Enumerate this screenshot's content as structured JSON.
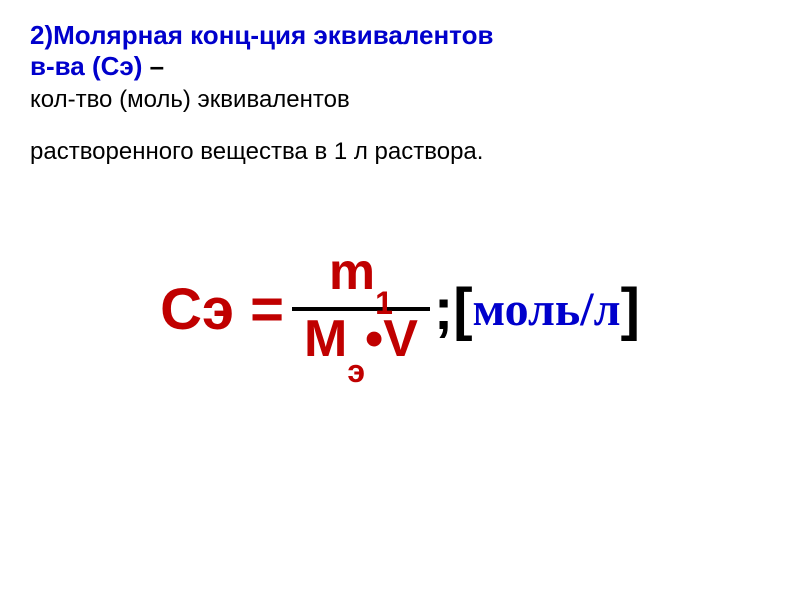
{
  "header": {
    "title_line1": "2)Молярная конц-ция эквивалентов",
    "title_line2_blue": "   в-ва (Сэ) ",
    "title_line2_black": "–",
    "desc_line1": "кол-тво (моль) эквивалентов",
    "desc_line2": "растворенного вещества в 1 л раствора."
  },
  "formula": {
    "left": "Сэ = ",
    "numerator_base": "m",
    "numerator_sub": "1",
    "denominator_base1": "М",
    "denominator_sub": "э",
    "denominator_base2": "•V",
    "semicolon": ";",
    "bracket_left": "[",
    "unit": "моль/л",
    "bracket_right": "]"
  },
  "styling": {
    "title_color": "#0000cc",
    "formula_color": "#c00000",
    "text_color": "#000000",
    "unit_color": "#0000cc",
    "background": "#ffffff",
    "title_fontsize": 26,
    "desc_fontsize": 24,
    "formula_fontsize": 58,
    "fraction_fontsize": 52,
    "sub_fontsize": 32,
    "unit_fontsize": 48
  }
}
